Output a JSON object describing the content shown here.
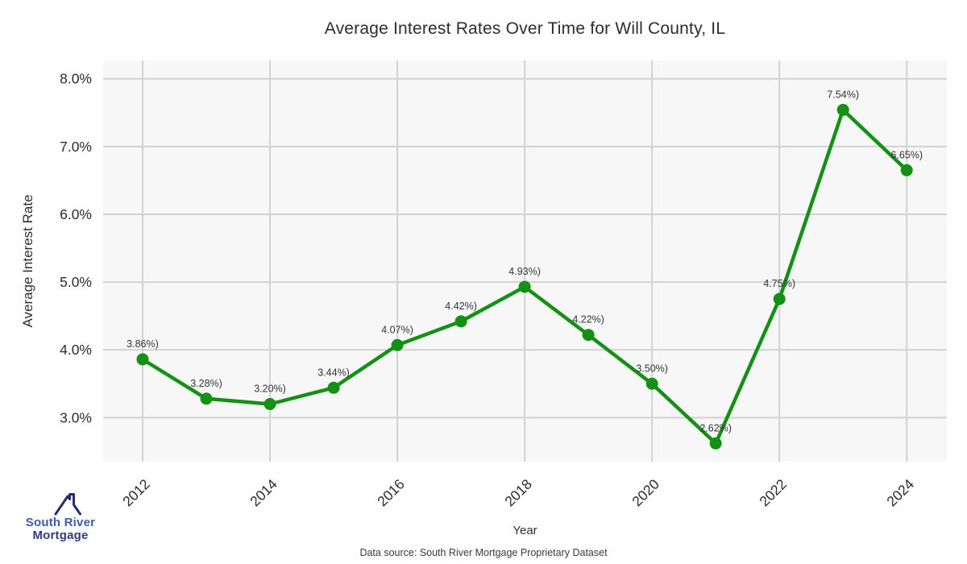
{
  "header": {
    "title": "Average Interest Rates Over Time for Will County, IL"
  },
  "chart_data": {
    "type": "line",
    "title": "Average Interest Rates Over Time for Will County, IL",
    "xlabel": "Year",
    "ylabel": "Average Interest Rate",
    "x": [
      2012,
      2013,
      2014,
      2015,
      2016,
      2017,
      2018,
      2019,
      2020,
      2021,
      2022,
      2023,
      2024
    ],
    "values": [
      3.86,
      3.28,
      3.2,
      3.44,
      4.07,
      4.42,
      4.93,
      4.22,
      3.5,
      2.62,
      4.75,
      7.54,
      6.65
    ],
    "point_labels": [
      "3.86%)",
      "3.28%)",
      "3.20%)",
      "3.44%)",
      "4.07%)",
      "4.42%)",
      "4.93%)",
      "4.22%)",
      "3.50%)",
      "2.62%)",
      "4.75%)",
      "7.54%)",
      "6.65%)"
    ],
    "xticks": [
      2012,
      2014,
      2016,
      2018,
      2020,
      2022,
      2024
    ],
    "yticks_values": [
      3,
      4,
      5,
      6,
      7,
      8
    ],
    "yticks_labels": [
      "3.0%",
      "4.0%",
      "5.0%",
      "6.0%",
      "7.0%",
      "8.0%"
    ],
    "xlim": [
      2011.38,
      2024.63
    ],
    "ylim": [
      2.35,
      8.27
    ],
    "grid": true,
    "legend": "none",
    "colors": {
      "line": "#149114",
      "marker": "#149114",
      "plot_background": "#f7f7f7",
      "gridline": "#d2d2d2",
      "tick_text": "#2b2b2b",
      "point_label_text": "#333333"
    }
  },
  "footer": {
    "data_source": "Data source: South River Mortgage Proprietary Dataset"
  },
  "logo": {
    "line1": "South River",
    "line2": "Mortgage",
    "colors": {
      "line1": "#3b5ca9",
      "line2": "#35387f",
      "icon": "#252e68"
    }
  }
}
